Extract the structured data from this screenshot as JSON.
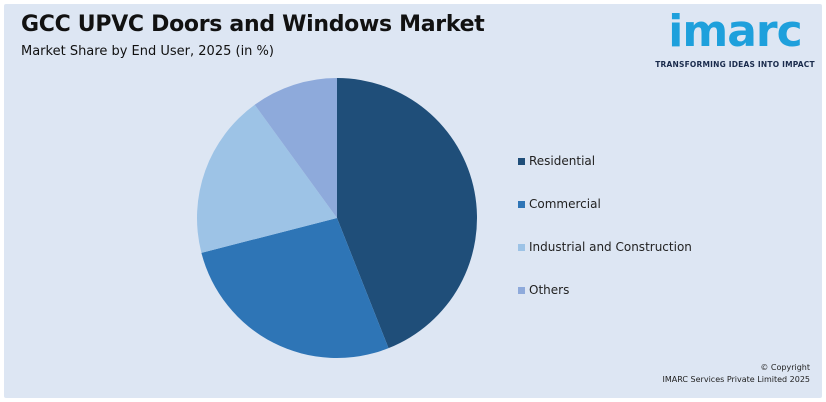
{
  "header": {
    "title": "GCC UPVC Doors and Windows Market",
    "subtitle": "Market Share by End User, 2025 (in %)"
  },
  "logo": {
    "word": "imarc",
    "tagline": "TRANSFORMING IDEAS INTO IMPACT",
    "color": "#1ea0dc"
  },
  "chart_data": {
    "type": "pie",
    "categories": [
      "Residential",
      "Commercial",
      "Industrial and Construction",
      "Others"
    ],
    "values": [
      44,
      27,
      19,
      10
    ],
    "colors": [
      "#1f4e79",
      "#2e75b6",
      "#9dc3e6",
      "#8eaadb"
    ],
    "legend": "right",
    "start_angle": "12 o'clock",
    "direction": "clockwise"
  },
  "footer": {
    "copyright_line1": "© Copyright",
    "copyright_line2": "IMARC Services Private Limited 2025"
  }
}
